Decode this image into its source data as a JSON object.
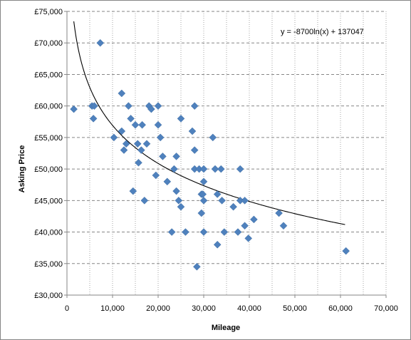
{
  "chart_data": {
    "type": "scatter",
    "xlabel": "Mileage",
    "ylabel": "Asking Price",
    "xlim": [
      0,
      70000
    ],
    "ylim": [
      30000,
      75000
    ],
    "x_ticks": [
      "0",
      "10,000",
      "20,000",
      "30,000",
      "40,000",
      "50,000",
      "60,000",
      "70,000"
    ],
    "y_ticks": [
      "£30,000",
      "£35,000",
      "£40,000",
      "£45,000",
      "£50,000",
      "£55,000",
      "£60,000",
      "£65,000",
      "£70,000",
      "£75,000"
    ],
    "grid": true,
    "marker_color": "#4F81BD",
    "trendline": {
      "type": "logarithmic",
      "equation": "y = -8700ln(x) + 137047",
      "a": -8700,
      "b": 137047,
      "x_range": [
        1500,
        61000
      ],
      "color": "#000000"
    },
    "points": [
      {
        "x": 1500,
        "y": 59500
      },
      {
        "x": 5500,
        "y": 60000
      },
      {
        "x": 6000,
        "y": 60000
      },
      {
        "x": 5800,
        "y": 58000
      },
      {
        "x": 7300,
        "y": 70000
      },
      {
        "x": 10300,
        "y": 55000
      },
      {
        "x": 12000,
        "y": 62000
      },
      {
        "x": 12000,
        "y": 56000
      },
      {
        "x": 12500,
        "y": 53000
      },
      {
        "x": 13000,
        "y": 54000
      },
      {
        "x": 13500,
        "y": 60000
      },
      {
        "x": 14000,
        "y": 58000
      },
      {
        "x": 14500,
        "y": 46500
      },
      {
        "x": 15000,
        "y": 57000
      },
      {
        "x": 15500,
        "y": 54000
      },
      {
        "x": 15700,
        "y": 51000
      },
      {
        "x": 16300,
        "y": 53000
      },
      {
        "x": 16500,
        "y": 57000
      },
      {
        "x": 17000,
        "y": 45000
      },
      {
        "x": 17500,
        "y": 54000
      },
      {
        "x": 18000,
        "y": 60000
      },
      {
        "x": 18500,
        "y": 59500
      },
      {
        "x": 19500,
        "y": 49000
      },
      {
        "x": 20000,
        "y": 57000
      },
      {
        "x": 20000,
        "y": 60000
      },
      {
        "x": 20500,
        "y": 55000
      },
      {
        "x": 21000,
        "y": 52000
      },
      {
        "x": 22000,
        "y": 48000
      },
      {
        "x": 23000,
        "y": 40000
      },
      {
        "x": 23500,
        "y": 50000
      },
      {
        "x": 24000,
        "y": 46500
      },
      {
        "x": 24000,
        "y": 52000
      },
      {
        "x": 24500,
        "y": 45000
      },
      {
        "x": 25000,
        "y": 58000
      },
      {
        "x": 25000,
        "y": 44000
      },
      {
        "x": 26000,
        "y": 40000
      },
      {
        "x": 27500,
        "y": 56000
      },
      {
        "x": 28000,
        "y": 50000
      },
      {
        "x": 28000,
        "y": 60000
      },
      {
        "x": 28000,
        "y": 53000
      },
      {
        "x": 28500,
        "y": 34500
      },
      {
        "x": 29000,
        "y": 50000
      },
      {
        "x": 29500,
        "y": 46000
      },
      {
        "x": 29500,
        "y": 43000
      },
      {
        "x": 30000,
        "y": 50000
      },
      {
        "x": 30000,
        "y": 48000
      },
      {
        "x": 29800,
        "y": 46000
      },
      {
        "x": 30000,
        "y": 45000
      },
      {
        "x": 30000,
        "y": 40000
      },
      {
        "x": 32000,
        "y": 55000
      },
      {
        "x": 32500,
        "y": 50000
      },
      {
        "x": 33000,
        "y": 46000
      },
      {
        "x": 33000,
        "y": 38000
      },
      {
        "x": 33800,
        "y": 50000
      },
      {
        "x": 34000,
        "y": 45000
      },
      {
        "x": 34500,
        "y": 40000
      },
      {
        "x": 36500,
        "y": 44000
      },
      {
        "x": 37500,
        "y": 40000
      },
      {
        "x": 38000,
        "y": 50000
      },
      {
        "x": 38000,
        "y": 45000
      },
      {
        "x": 39000,
        "y": 41000
      },
      {
        "x": 39000,
        "y": 45000
      },
      {
        "x": 39800,
        "y": 39000
      },
      {
        "x": 41000,
        "y": 42000
      },
      {
        "x": 46500,
        "y": 43000
      },
      {
        "x": 47500,
        "y": 41000
      },
      {
        "x": 61200,
        "y": 37000
      }
    ]
  }
}
